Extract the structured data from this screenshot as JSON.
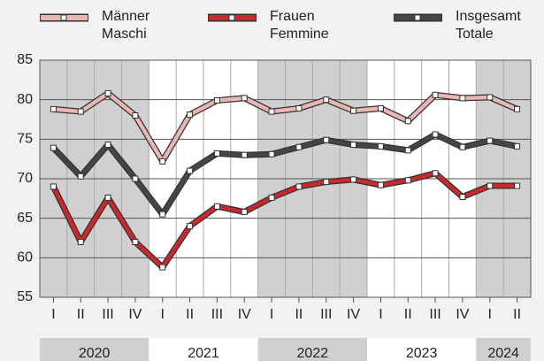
{
  "chart_data": {
    "type": "line",
    "categories": [
      "I",
      "II",
      "III",
      "IV",
      "I",
      "II",
      "III",
      "IV",
      "I",
      "II",
      "III",
      "IV",
      "I",
      "II",
      "III",
      "IV",
      "I",
      "II"
    ],
    "years": [
      "2020",
      "2021",
      "2022",
      "2023",
      "2024"
    ],
    "series": [
      {
        "name": "Männer\nMaschi",
        "color": "#e9b6b4",
        "values": [
          78.8,
          78.5,
          80.8,
          78.0,
          72.2,
          78.1,
          79.9,
          80.2,
          78.5,
          78.9,
          80.0,
          78.6,
          78.9,
          77.3,
          80.6,
          80.2,
          80.3,
          78.8
        ]
      },
      {
        "name": "Frauen\nFemmine",
        "color": "#c9282d",
        "values": [
          69.0,
          62.0,
          67.6,
          62.0,
          58.8,
          64.0,
          66.5,
          65.8,
          67.6,
          69.0,
          69.6,
          69.9,
          69.2,
          69.8,
          70.7,
          67.7,
          69.1,
          69.1
        ]
      },
      {
        "name": "Insgesamt\nTotale",
        "color": "#454545",
        "values": [
          73.9,
          70.3,
          74.3,
          70.0,
          65.5,
          71.0,
          73.2,
          73.0,
          73.1,
          74.0,
          74.9,
          74.3,
          74.1,
          73.6,
          75.6,
          74.0,
          74.8,
          74.1
        ]
      }
    ],
    "ylim": [
      55,
      85
    ],
    "yticks": [
      55,
      60,
      65,
      70,
      75,
      80,
      85
    ],
    "grid": true
  }
}
